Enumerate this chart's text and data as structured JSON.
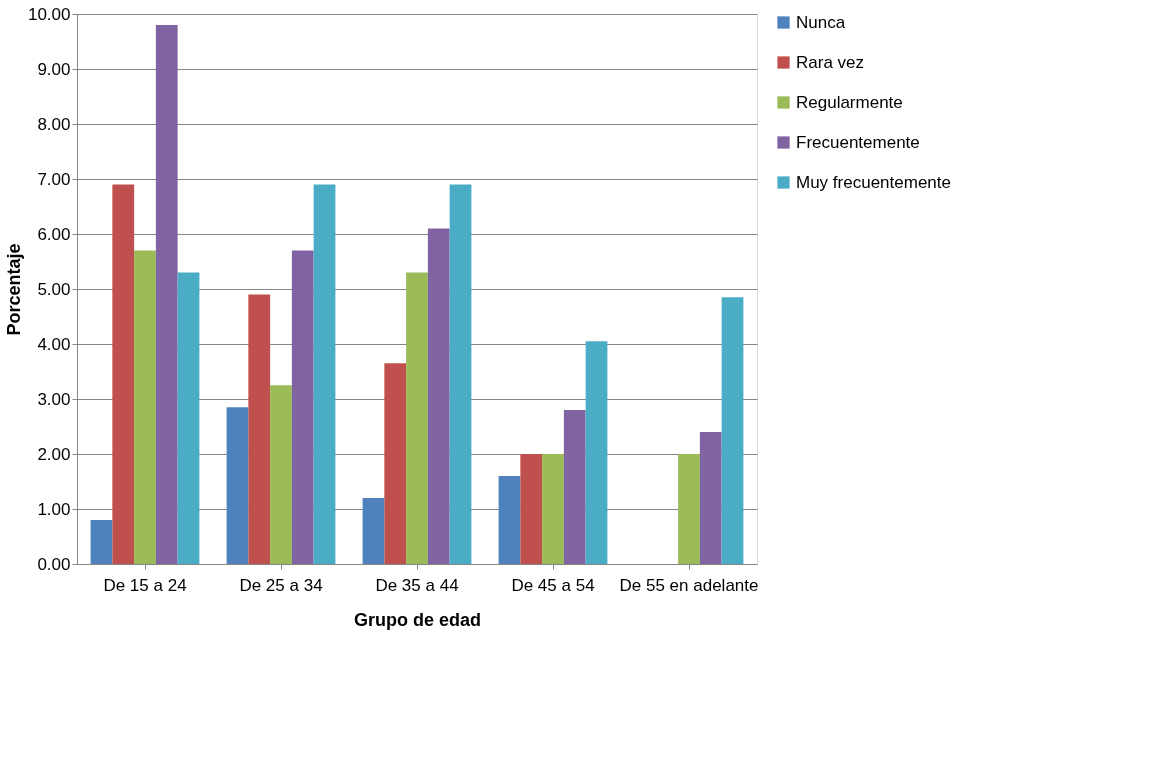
{
  "chart_data": {
    "type": "bar",
    "xlabel": "Grupo de edad",
    "ylabel": "Porcentaje",
    "categories": [
      "De 15 a 24",
      "De 25 a 34",
      "De 35 a 44",
      "De 45 a 54",
      "De 55 en adelante"
    ],
    "series": [
      {
        "name": "Nunca",
        "color": "#4f81bd",
        "values": [
          0.8,
          2.85,
          1.2,
          1.6,
          0
        ]
      },
      {
        "name": "Rara vez",
        "color": "#c0504d",
        "values": [
          6.9,
          4.9,
          3.65,
          2.0,
          0
        ]
      },
      {
        "name": "Regularmente",
        "color": "#9bbb59",
        "values": [
          5.7,
          3.25,
          5.3,
          2.0,
          2.0
        ]
      },
      {
        "name": "Frecuentemente",
        "color": "#8064a2",
        "values": [
          9.8,
          5.7,
          6.1,
          2.8,
          2.4
        ]
      },
      {
        "name": "Muy frecuentemente",
        "color": "#4bacc6",
        "values": [
          5.3,
          6.9,
          6.9,
          4.05,
          4.85
        ]
      }
    ],
    "ylim": [
      0,
      10
    ],
    "yticks": [
      {
        "value": 0,
        "label": "0.00"
      },
      {
        "value": 1,
        "label": "1.00"
      },
      {
        "value": 2,
        "label": "2.00"
      },
      {
        "value": 3,
        "label": "3.00"
      },
      {
        "value": 4,
        "label": "4.00"
      },
      {
        "value": 5,
        "label": "5.00"
      },
      {
        "value": 6,
        "label": "6.00"
      },
      {
        "value": 7,
        "label": "7.00"
      },
      {
        "value": 8,
        "label": "8.00"
      },
      {
        "value": 9,
        "label": "9.00"
      },
      {
        "value": 10,
        "label": "10.00"
      }
    ],
    "grid": "y",
    "legend": "right"
  }
}
